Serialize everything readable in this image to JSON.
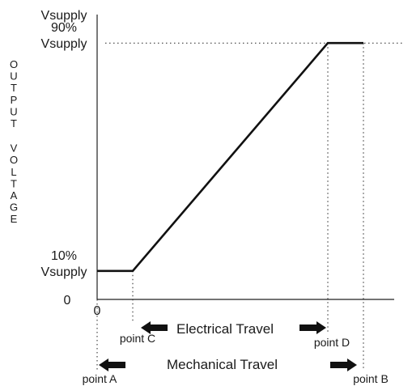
{
  "chart_data": {
    "type": "line",
    "title": "",
    "xlabel": "",
    "ylabel": "OUTPUT VOLTAGE",
    "xlim": [
      "point A",
      "point B"
    ],
    "ylim": [
      0,
      100
    ],
    "y_unit": "% Vsupply",
    "y_tick_labels": [
      {
        "value": 100,
        "lines": [
          "Vsupply"
        ]
      },
      {
        "value": 90,
        "lines": [
          "90%",
          "Vsupply"
        ]
      },
      {
        "value": 10,
        "lines": [
          "10%",
          "Vsupply"
        ]
      },
      {
        "value": 0,
        "lines": [
          "0"
        ]
      }
    ],
    "x_tick_labels": [
      "0"
    ],
    "points": [
      {
        "x": "point A",
        "y": 10
      },
      {
        "x": "point C",
        "y": 10
      },
      {
        "x": "point D",
        "y": 90
      },
      {
        "x": "point B",
        "y": 90
      }
    ],
    "point_labels": {
      "a": "point A",
      "b": "point B",
      "c": "point C",
      "d": "point D"
    },
    "annotations": {
      "electrical_travel": "Electrical Travel",
      "mechanical_travel": "Mechanical Travel"
    },
    "guides": {
      "dotted_90_line": true,
      "dotted_verticals": true
    },
    "grid": false,
    "colors": {
      "line": "#111111",
      "axis": "#222222",
      "text": "#1a1a1a"
    }
  }
}
